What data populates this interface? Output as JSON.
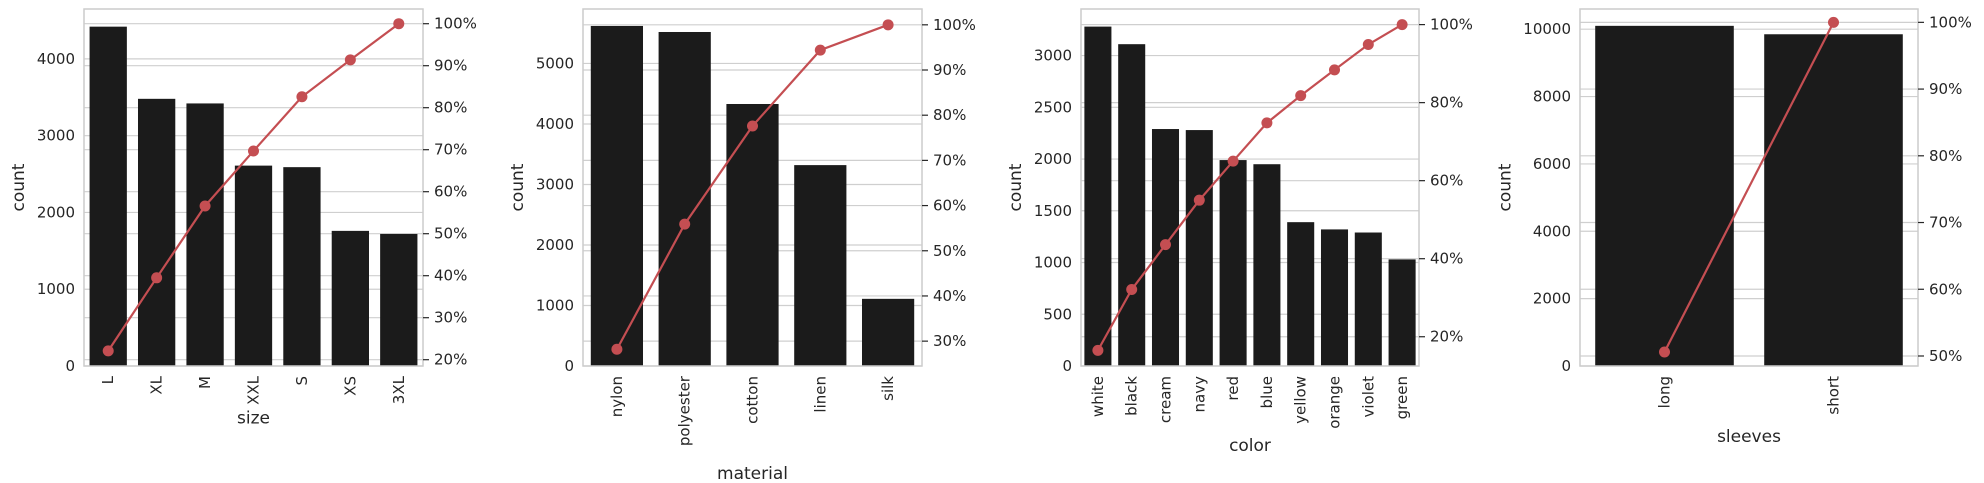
{
  "colors": {
    "bar": "#1b1b1b",
    "line": "#c44e52",
    "grid": "#cfcfcf",
    "frame": "#cccccc",
    "text": "#262626"
  },
  "chart_data": [
    {
      "type": "bar",
      "overlay": "line",
      "xlabel": "size",
      "ylabel": "count",
      "categories": [
        "L",
        "XL",
        "M",
        "XXL",
        "S",
        "XS",
        "3XL"
      ],
      "values": [
        4420,
        3480,
        3420,
        2610,
        2590,
        1760,
        1720
      ],
      "ylim": [
        0,
        4650
      ],
      "yticks": [
        0,
        1000,
        2000,
        3000,
        4000
      ],
      "cumulative_pct": [
        22.1,
        39.5,
        56.6,
        69.7,
        82.6,
        91.4,
        100
      ],
      "y2lim": [
        18.5,
        103.5
      ],
      "y2ticks": [
        "20%",
        "30%",
        "40%",
        "50%",
        "60%",
        "70%",
        "80%",
        "90%",
        "100%"
      ]
    },
    {
      "type": "bar",
      "overlay": "line",
      "xlabel": "material",
      "ylabel": "count",
      "categories": [
        "nylon",
        "polyester",
        "cotton",
        "linen",
        "silk"
      ],
      "values": [
        5620,
        5520,
        4330,
        3320,
        1110
      ],
      "ylim": [
        0,
        5900
      ],
      "yticks": [
        0,
        1000,
        2000,
        3000,
        4000,
        5000
      ],
      "cumulative_pct": [
        28.2,
        55.9,
        77.6,
        94.4,
        100
      ],
      "y2lim": [
        24.5,
        103.5
      ],
      "y2ticks": [
        "30%",
        "40%",
        "50%",
        "60%",
        "70%",
        "80%",
        "90%",
        "100%"
      ]
    },
    {
      "type": "bar",
      "overlay": "line",
      "xlabel": "color",
      "ylabel": "count",
      "categories": [
        "white",
        "black",
        "cream",
        "navy",
        "red",
        "blue",
        "yellow",
        "orange",
        "violet",
        "green"
      ],
      "values": [
        3280,
        3110,
        2290,
        2280,
        1990,
        1950,
        1390,
        1320,
        1290,
        1030
      ],
      "ylim": [
        0,
        3450
      ],
      "yticks": [
        0,
        500,
        1000,
        1500,
        2000,
        2500,
        3000
      ],
      "cumulative_pct": [
        16.5,
        32.1,
        43.6,
        55.0,
        65.0,
        74.8,
        81.8,
        88.4,
        94.9,
        100
      ],
      "y2lim": [
        12.5,
        104
      ],
      "y2ticks": [
        "20%",
        "40%",
        "60%",
        "80%",
        "100%"
      ]
    },
    {
      "type": "bar",
      "overlay": "line",
      "xlabel": "sleeves",
      "ylabel": "count",
      "categories": [
        "long",
        "short"
      ],
      "values": [
        10100,
        9850
      ],
      "ylim": [
        0,
        10600
      ],
      "yticks": [
        0,
        2000,
        4000,
        6000,
        8000,
        10000
      ],
      "cumulative_pct": [
        50.6,
        100
      ],
      "y2lim": [
        48.5,
        102
      ],
      "y2ticks": [
        "50%",
        "60%",
        "70%",
        "80%",
        "90%",
        "100%"
      ]
    }
  ]
}
